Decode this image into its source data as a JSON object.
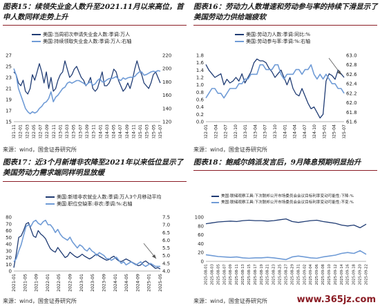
{
  "source_text": "来源：wind，国金证券研究所",
  "watermark": "www.365jz.com",
  "colors": {
    "dark": "#1f3b73",
    "light": "#6f9bd6",
    "rule": "#8a1c24",
    "mid": "#3a5aa8"
  },
  "chart_data": [
    {
      "id": "c15",
      "type": "line",
      "title": "图表15：续领失业金人数升至2021.11月以来高位，首申人数同样走势上升",
      "legend": [
        "美国:当周初次申请失业金人数:季调:万人",
        "美国:持续领取失业金人数:季调:万人:右轴"
      ],
      "y_left": {
        "ticks": [
          "15",
          "17",
          "19",
          "21",
          "23",
          "25",
          "27"
        ],
        "min": 15,
        "max": 27
      },
      "y_right": {
        "ticks": [
          "120",
          "140",
          "160",
          "180",
          "200",
          "220"
        ],
        "min": 120,
        "max": 220
      },
      "x_labels": [
        "2021-11",
        "2022-01",
        "2022-03",
        "2022-05",
        "2022-07",
        "2022-09",
        "2022-11",
        "2023-01",
        "2023-03",
        "2023-05",
        "2023-07",
        "2023-09",
        "2023-11",
        "2024-01",
        "2024-03",
        "2024-05",
        "2024-07",
        "2024-09",
        "2024-11",
        "2025-01",
        "2025-03",
        "2025-05",
        "2025-07"
      ],
      "series": [
        {
          "name": "美国:当周初次申请失业金人数:季调:万人",
          "axis": "left",
          "color": "#1f3b73",
          "values": [
            24,
            23.5,
            22,
            21.5,
            22.5,
            20.5,
            20,
            21,
            23.5,
            22.5,
            24,
            25.5,
            24,
            22,
            24,
            21,
            23,
            20.5,
            21,
            22.5,
            23.5,
            24,
            26,
            24.5,
            23,
            23.5,
            24.5,
            25,
            24,
            23,
            22.5,
            21.5,
            22,
            23,
            21,
            20.5,
            21,
            22.5,
            24,
            21.5,
            21.5,
            22,
            23,
            24.5,
            24,
            22.5,
            21.5,
            20.5,
            21,
            22,
            21,
            22.5,
            24.5,
            26,
            24.5,
            23.5,
            22,
            21.5,
            21,
            22,
            23.5,
            24,
            23,
            22
          ]
        },
        {
          "name": "美国:持续领取失业金人数:季调:万人:右轴",
          "axis": "right",
          "color": "#6f9bd6",
          "values": [
            200,
            190,
            170,
            160,
            150,
            140,
            135,
            132,
            135,
            133,
            135,
            140,
            143,
            148,
            150,
            155,
            165,
            150,
            157,
            160,
            165,
            170,
            172,
            178,
            180,
            178,
            180,
            182,
            182,
            180,
            178,
            175,
            178,
            180,
            175,
            177,
            182,
            185,
            180,
            180,
            183,
            185,
            185,
            186,
            188,
            184,
            182,
            186,
            184,
            186,
            187,
            187,
            188,
            192,
            195,
            195,
            190,
            191,
            193,
            195,
            196,
            195,
            197,
            196
          ]
        }
      ]
    },
    {
      "id": "c16",
      "type": "line",
      "title": "图表16：劳动力人数增速和劳动参与率的持续下滑显示了美国劳动力供给端疲软",
      "legend": [
        "美国:劳动力人数:季调:同比:%",
        "美国:劳动参与率:季调:%:右轴"
      ],
      "y_left": {
        "ticks": [
          "0.0",
          "0.2",
          "0.4",
          "0.6",
          "0.8",
          "1.0",
          "1.2",
          "1.4",
          "1.6",
          "1.8"
        ],
        "min": 0,
        "max": 1.8
      },
      "y_right": {
        "ticks": [
          "61.6",
          "61.8",
          "62.0",
          "62.2",
          "62.4",
          "62.6",
          "62.8",
          "63.0"
        ],
        "min": 61.6,
        "max": 63.0
      },
      "x_labels": [
        "2022-01",
        "2022-04",
        "2022-07",
        "2022-10",
        "2023-01",
        "2023-04",
        "2023-07",
        "2023-10",
        "2024-01",
        "2024-04",
        "2024-07",
        "2024-10",
        "2025-01",
        "2025-04",
        "2025-07"
      ],
      "series": [
        {
          "name": "美国:劳动力人数:季调:同比:%",
          "axis": "left",
          "color": "#1f3b73",
          "values": [
            1.55,
            1.4,
            1.3,
            1.2,
            1.25,
            1.3,
            1.0,
            1.15,
            1.05,
            1.1,
            1.2,
            1.1,
            1.3,
            1.05,
            1.2,
            1.35,
            1.6,
            1.7,
            1.65,
            1.65,
            1.6,
            1.45,
            1.35,
            1.2,
            1.3,
            1.4,
            1.2,
            1.0,
            1.2,
            0.9,
            0.75,
            0.7,
            0.9,
            0.7,
            0.5,
            0.35,
            0.4,
            0.25,
            0.1,
            0.2,
            1.1,
            1.3,
            1.25,
            1.15,
            1.4,
            1.3,
            1.2
          ]
        },
        {
          "name": "美国:劳动参与率:季调:%:右轴",
          "axis": "right",
          "color": "#6f9bd6",
          "values": [
            62.1,
            62.2,
            62.3,
            62.3,
            62.2,
            62.2,
            62.1,
            62.2,
            62.3,
            62.3,
            62.3,
            62.4,
            62.4,
            62.5,
            62.5,
            62.6,
            62.6,
            62.6,
            62.8,
            62.8,
            62.7,
            62.7,
            62.7,
            62.8,
            62.8,
            62.6,
            62.5,
            62.6,
            62.6,
            62.6,
            62.7,
            62.7,
            62.6,
            62.7,
            62.7,
            62.8,
            62.6,
            62.5,
            62.6,
            62.5,
            62.6,
            62.5,
            62.4,
            62.4,
            62.3,
            62.3,
            62.2
          ]
        }
      ]
    },
    {
      "id": "c17",
      "type": "line",
      "title": "图表17：近3个月新增非农降至2021年以来低位显示了美国劳动力需求端同样明显放缓",
      "legend": [
        "美国:新增非农就业人数:季调:万人3个月移动平均",
        "美国:职位空缺率:非农:季调:%:右轴"
      ],
      "y_left": {
        "ticks": [
          "0",
          "10",
          "20",
          "30",
          "40",
          "50",
          "60",
          "70",
          "80"
        ],
        "min": 0,
        "max": 80
      },
      "y_right": {
        "ticks": [
          "4.0",
          "4.5",
          "5.0",
          "5.5",
          "6.0",
          "6.5",
          "7.0",
          "7.5"
        ],
        "min": 4.0,
        "max": 7.5
      },
      "x_labels": [
        "2021-01",
        "2021-05",
        "2021-09",
        "2022-01",
        "2022-05",
        "2022-09",
        "2023-01",
        "2023-05",
        "2023-09",
        "2024-01",
        "2024-05",
        "2024-09",
        "2025-01",
        "2025-05"
      ],
      "series": [
        {
          "name": "美国:新增非农就业人数:季调:万人3个月移动平均",
          "axis": "left",
          "color": "#1f3b73",
          "values": [
            5,
            25,
            50,
            52,
            60,
            70,
            72,
            62,
            52,
            50,
            60,
            55,
            52,
            48,
            40,
            33,
            30,
            28,
            35,
            30,
            25,
            20,
            22,
            28,
            25,
            22,
            20,
            22,
            25,
            22,
            20,
            18,
            20,
            23,
            25,
            22,
            20,
            18,
            16,
            17,
            20,
            22,
            18,
            15,
            14,
            16,
            18,
            16,
            14,
            12,
            10,
            8,
            9,
            13,
            15,
            12,
            10,
            7,
            4,
            5,
            3
          ]
        },
        {
          "name": "美国:职位空缺率:非农:季调:%:右轴",
          "axis": "right",
          "color": "#6f9bd6",
          "values": [
            4.6,
            4.8,
            5.3,
            5.7,
            6.3,
            6.9,
            7.0,
            6.9,
            7.2,
            7.3,
            7.1,
            7.0,
            7.2,
            7.3,
            7.0,
            7.0,
            6.8,
            6.5,
            6.7,
            6.4,
            6.2,
            6.1,
            6.0,
            6.2,
            5.9,
            5.7,
            5.5,
            5.7,
            5.6,
            5.4,
            5.3,
            5.5,
            5.3,
            5.2,
            5.0,
            5.2,
            5.1,
            5.0,
            4.8,
            4.8,
            4.7,
            4.8,
            4.9,
            4.7,
            4.5,
            4.6,
            4.4,
            4.5,
            4.6,
            4.5,
            4.4,
            4.5,
            4.6,
            4.4,
            4.3,
            4.4,
            4.5,
            4.4,
            4.3,
            4.3,
            4.3
          ]
        }
      ]
    },
    {
      "id": "c18",
      "type": "line",
      "title": "图表18：鲍威尔鸽派发言后，9月降息预期明显抬升",
      "legend": [
        "美国:联储观察工具:下次联邦公开市场委员会会议目标利率变动可能性:下降:%",
        "美国:联储观察工具:下次联邦公开市场委员会会议目标利率变动可能性:不变:%"
      ],
      "y_left": {
        "ticks": [
          "0",
          "20",
          "40",
          "60",
          "80",
          "100"
        ],
        "min": 0,
        "max": 100
      },
      "x_labels": [
        "2025-08-01",
        "2025-08-03",
        "2025-08-05",
        "2025-08-07",
        "2025-08-09",
        "2025-08-11",
        "2025-08-13",
        "2025-08-15",
        "2025-08-17",
        "2025-08-19",
        "2025-08-21",
        "2025-08-23",
        "2025-08-25",
        "2025-08-27",
        "2025-08-29",
        "2025-08-31",
        "2025-09-02",
        "2025-09-04",
        "2025-09-06",
        "2025-09-08",
        "2025-09-10",
        "2025-09-12",
        "2025-09-14",
        "2025-09-16",
        "2025-09-18",
        "2025-09-20",
        "2025-09-22"
      ],
      "series": [
        {
          "name": "美国:联储观察工具:下次联邦公开市场委员会会议目标利率变动可能性:下降:%",
          "axis": "left",
          "color": "#1f3b73",
          "values": [
            85,
            87,
            89,
            90,
            91,
            90,
            92,
            93,
            92,
            92,
            91,
            92,
            94,
            96,
            90,
            88,
            90,
            92,
            93,
            90,
            88,
            86,
            82,
            80,
            82,
            76,
            84
          ]
        },
        {
          "name": "美国:联储观察工具:下次联邦公开市场委员会会议目标利率变动可能性:不变:%",
          "axis": "left",
          "color": "#6f9bd6",
          "values": [
            15,
            13,
            11,
            10,
            9,
            10,
            8,
            7,
            8,
            8,
            9,
            8,
            6,
            4,
            10,
            12,
            10,
            8,
            7,
            10,
            12,
            14,
            18,
            20,
            18,
            24,
            16
          ]
        }
      ]
    }
  ]
}
